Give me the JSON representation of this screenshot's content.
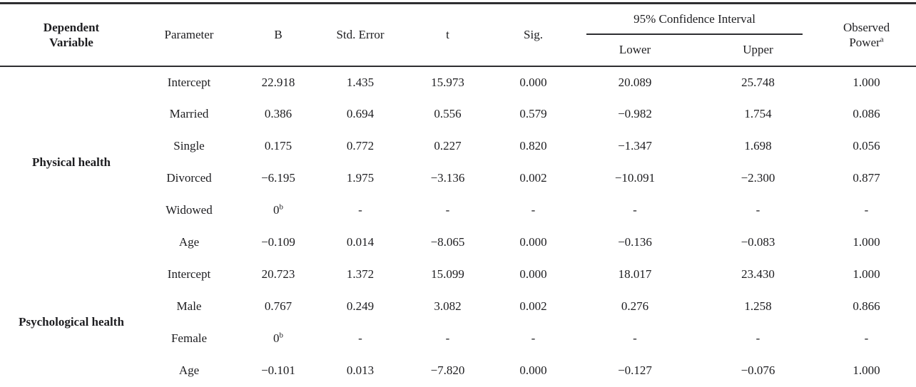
{
  "page": {
    "background": "#ffffff",
    "text_color": "#1d1d20",
    "rule_color": "#2e2e31"
  },
  "table": {
    "header": {
      "dependent_variable": "Dependent Variable",
      "parameter": "Parameter",
      "b": "B",
      "std_error": "Std. Error",
      "t": "t",
      "sig": "Sig.",
      "ci": "95% Confidence Interval",
      "ci_lower": "Lower",
      "ci_upper": "Upper",
      "observed_power_line1": "Observed",
      "observed_power_line2": "Power",
      "observed_power_sup": "a"
    },
    "groups": [
      {
        "dependent_variable": "Physical health",
        "rows": [
          {
            "parameter": "Intercept",
            "b": "22.918",
            "std_error": "1.435",
            "t": "15.973",
            "sig": "0.000",
            "lower": "20.089",
            "upper": "25.748",
            "power": "1.000"
          },
          {
            "parameter": "Married",
            "b": "0.386",
            "std_error": "0.694",
            "t": "0.556",
            "sig": "0.579",
            "lower": "−0.982",
            "upper": "1.754",
            "power": "0.086"
          },
          {
            "parameter": "Single",
            "b": "0.175",
            "std_error": "0.772",
            "t": "0.227",
            "sig": "0.820",
            "lower": "−1.347",
            "upper": "1.698",
            "power": "0.056"
          },
          {
            "parameter": "Divorced",
            "b": "−6.195",
            "std_error": "1.975",
            "t": "−3.136",
            "sig": "0.002",
            "lower": "−10.091",
            "upper": "−2.300",
            "power": "0.877"
          },
          {
            "parameter": "Widowed",
            "b": "0^b",
            "std_error": "-",
            "t": "-",
            "sig": "-",
            "lower": "-",
            "upper": "-",
            "power": "-"
          },
          {
            "parameter": "Age",
            "b": "−0.109",
            "std_error": "0.014",
            "t": "−8.065",
            "sig": "0.000",
            "lower": "−0.136",
            "upper": "−0.083",
            "power": "1.000"
          }
        ]
      },
      {
        "dependent_variable": "Psychological health",
        "rows": [
          {
            "parameter": "Intercept",
            "b": "20.723",
            "std_error": "1.372",
            "t": "15.099",
            "sig": "0.000",
            "lower": "18.017",
            "upper": "23.430",
            "power": "1.000"
          },
          {
            "parameter": "Male",
            "b": "0.767",
            "std_error": "0.249",
            "t": "3.082",
            "sig": "0.002",
            "lower": "0.276",
            "upper": "1.258",
            "power": "0.866"
          },
          {
            "parameter": "Female",
            "b": "0^b",
            "std_error": "-",
            "t": "-",
            "sig": "-",
            "lower": "-",
            "upper": "-",
            "power": "-"
          },
          {
            "parameter": "Age",
            "b": "−0.101",
            "std_error": "0.013",
            "t": "−7.820",
            "sig": "0.000",
            "lower": "−0.127",
            "upper": "−0.076",
            "power": "1.000"
          }
        ]
      }
    ]
  }
}
